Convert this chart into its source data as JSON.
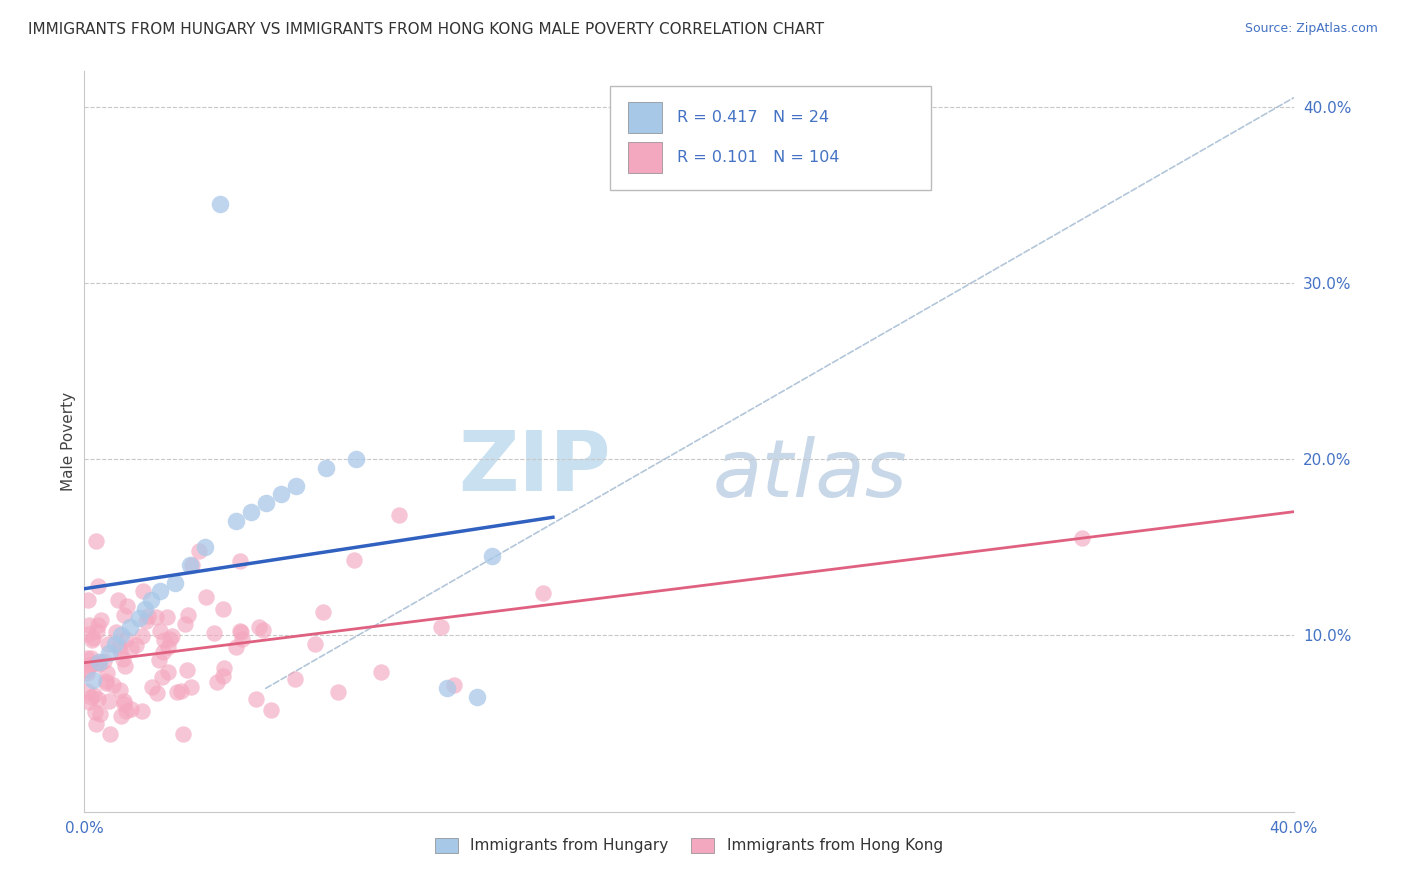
{
  "title": "IMMIGRANTS FROM HUNGARY VS IMMIGRANTS FROM HONG KONG MALE POVERTY CORRELATION CHART",
  "source": "Source: ZipAtlas.com",
  "ylabel": "Male Poverty",
  "r_hungary": 0.417,
  "n_hungary": 24,
  "r_hongkong": 0.101,
  "n_hongkong": 104,
  "xlim": [
    0.0,
    0.4
  ],
  "ylim": [
    0.0,
    0.42
  ],
  "color_hungary": "#a8c8e8",
  "color_hongkong": "#f4a8c0",
  "line_color_hungary": "#3060c0",
  "line_color_hongkong": "#e06080",
  "diag_color": "#a0b8d0",
  "watermark_zip_color": "#c8e0f0",
  "watermark_atlas_color": "#c8d8e8",
  "axis_color": "#4472c4",
  "title_fontsize": 11,
  "source_fontsize": 9,
  "tick_fontsize": 11,
  "legend_label1": "Immigrants from Hungary",
  "legend_label2": "Immigrants from Hong Kong"
}
